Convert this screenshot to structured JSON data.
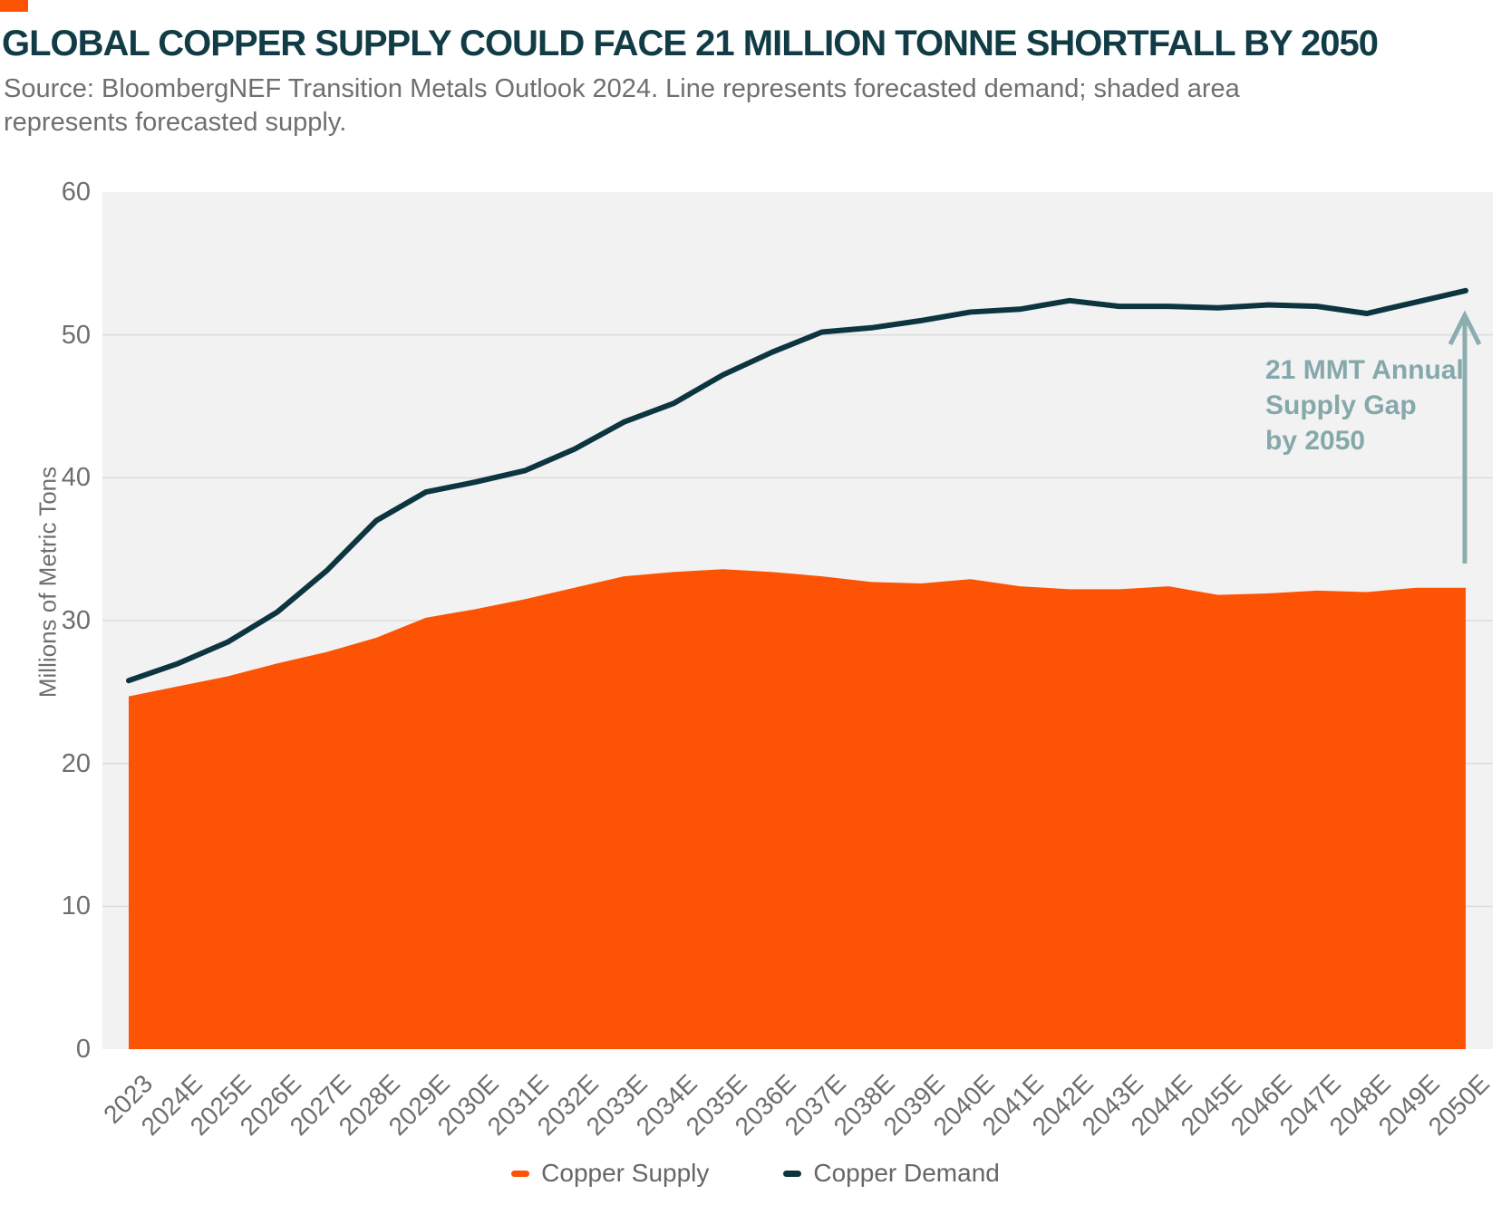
{
  "header": {
    "title": "GLOBAL COPPER SUPPLY COULD FACE 21 MILLION TONNE SHORTFALL BY 2050",
    "source": "Source: BloombergNEF Transition Metals Outlook 2024. Line represents forecasted demand; shaded area represents forecasted supply."
  },
  "logo_color": "#FD5304",
  "chart_data": {
    "type": "area",
    "title": "",
    "xlabel": "",
    "ylabel": "Millions of Metric Tons",
    "ylim": [
      0,
      60
    ],
    "yticks": [
      0,
      10,
      20,
      30,
      40,
      50,
      60
    ],
    "grid_values": [
      10,
      20,
      30,
      40,
      50
    ],
    "plot_bg": "#F2F2F2",
    "grid_color": "#DBDBDB",
    "categories": [
      "2023",
      "2024E",
      "2025E",
      "2026E",
      "2027E",
      "2028E",
      "2029E",
      "2030E",
      "2031E",
      "2032E",
      "2033E",
      "2034E",
      "2035E",
      "2036E",
      "2037E",
      "2038E",
      "2039E",
      "2040E",
      "2041E",
      "2042E",
      "2043E",
      "2044E",
      "2045E",
      "2046E",
      "2047E",
      "2048E",
      "2049E",
      "2050E"
    ],
    "series": [
      {
        "name": "Copper Supply",
        "type": "area",
        "color": "#FD5304",
        "values": [
          24.7,
          25.4,
          26.1,
          27.0,
          27.8,
          28.8,
          30.2,
          30.8,
          31.5,
          32.3,
          33.1,
          33.4,
          33.6,
          33.4,
          33.1,
          32.7,
          32.6,
          32.9,
          32.4,
          32.2,
          32.2,
          32.4,
          31.8,
          31.9,
          32.1,
          32.0,
          32.3,
          32.3
        ]
      },
      {
        "name": "Copper Demand",
        "type": "line",
        "color": "#0C3540",
        "values": [
          25.8,
          27.0,
          28.5,
          30.6,
          33.5,
          37.0,
          39.0,
          39.7,
          40.5,
          42.0,
          43.9,
          45.2,
          47.2,
          48.8,
          50.2,
          50.5,
          51.0,
          51.6,
          51.8,
          52.4,
          52.0,
          52.0,
          51.9,
          52.1,
          52.0,
          51.5,
          52.3,
          53.1
        ]
      }
    ],
    "annotation": {
      "lines": [
        "21 MMT Annual",
        "Supply Gap",
        "by 2050"
      ],
      "text_color": "#85A8AB",
      "arrow_color": "#8CADB0"
    },
    "legend_position": "bottom-center"
  }
}
